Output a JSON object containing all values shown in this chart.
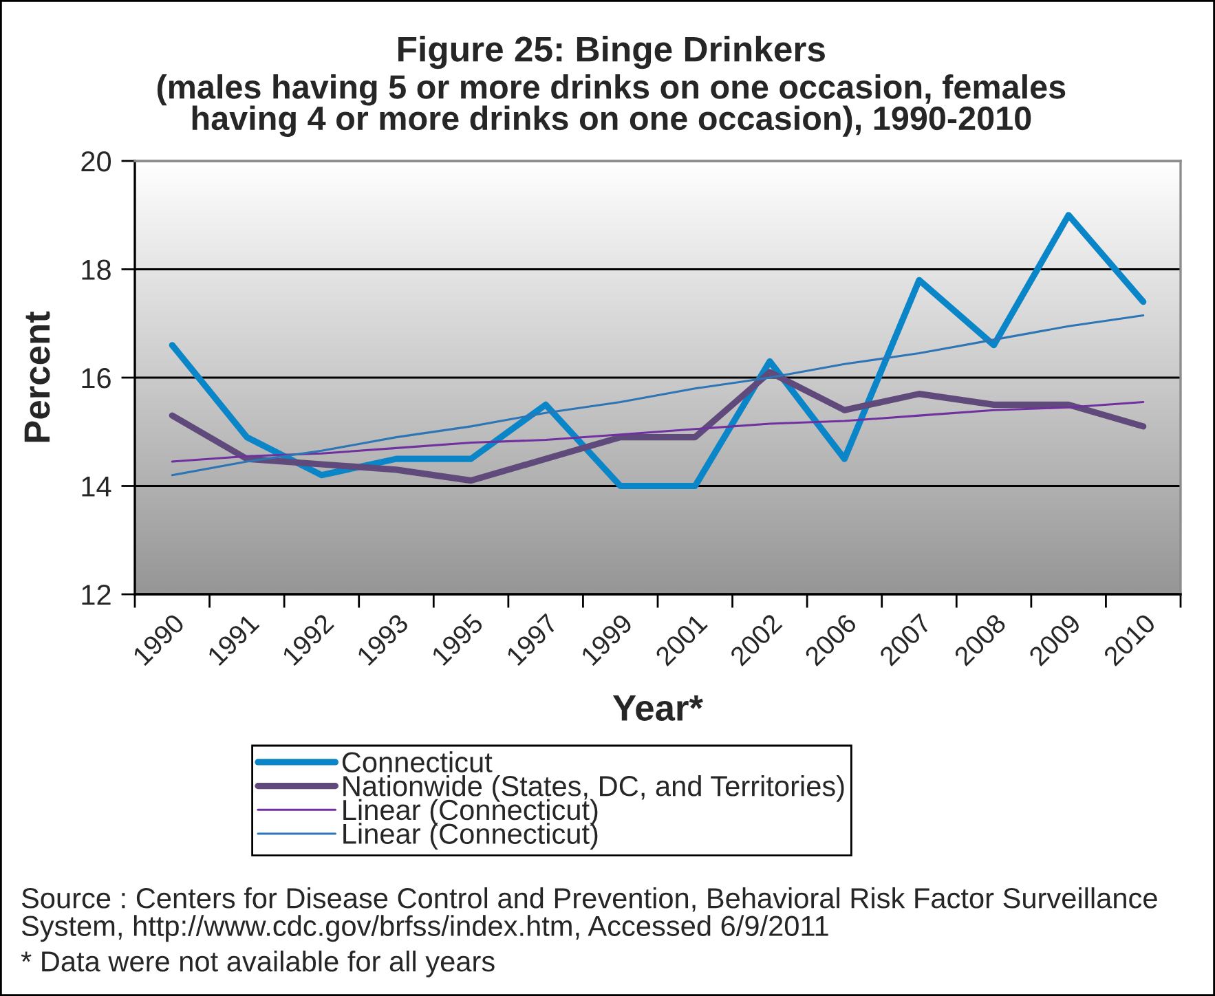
{
  "chart_data": {
    "type": "line",
    "title": "Figure 25: Binge Drinkers",
    "subtitle": "(males having 5 or more drinks on one occasion, females\nhaving 4 or more drinks on one occasion), 1990-2010",
    "xlabel": "Year*",
    "ylabel": "Percent",
    "categories": [
      "1990",
      "1991",
      "1992",
      "1993",
      "1995",
      "1997",
      "1999",
      "2001",
      "2002",
      "2006",
      "2007",
      "2008",
      "2009",
      "2010"
    ],
    "series": [
      {
        "name": "Connecticut",
        "color": "#0a86c8",
        "values": [
          16.6,
          14.9,
          14.2,
          14.5,
          14.5,
          15.5,
          14.0,
          14.0,
          16.3,
          14.5,
          17.8,
          16.6,
          19.0,
          17.4
        ]
      },
      {
        "name": "Nationwide (States, DC, and Territories)",
        "color": "#604a7b",
        "values": [
          15.3,
          14.5,
          14.4,
          14.3,
          14.1,
          14.5,
          14.9,
          14.9,
          16.1,
          15.4,
          15.7,
          15.5,
          15.5,
          15.1
        ]
      },
      {
        "name": "Linear (Connecticut)",
        "type": "line",
        "color": "#7030a0",
        "values": [
          14.45,
          14.55,
          14.6,
          14.7,
          14.8,
          14.85,
          14.95,
          15.05,
          15.15,
          15.2,
          15.3,
          15.4,
          15.45,
          15.55
        ]
      },
      {
        "name": "Linear (Connecticut)",
        "type": "line",
        "color": "#2e75b6",
        "values": [
          14.2,
          14.45,
          14.65,
          14.9,
          15.1,
          15.35,
          15.55,
          15.8,
          16.0,
          16.25,
          16.45,
          16.7,
          16.95,
          17.15
        ]
      }
    ],
    "ylim": [
      12,
      20
    ],
    "yticks": [
      12,
      14,
      16,
      18,
      20
    ],
    "grid": "y",
    "legend": "bottom",
    "annotations": [
      "Source : Centers for Disease Control and Prevention, Behavioral Risk Factor Surveillance\nSystem, http://www.cdc.gov/brfss/index.htm, Accessed 6/9/2011",
      "* Data were not available for all years"
    ]
  }
}
